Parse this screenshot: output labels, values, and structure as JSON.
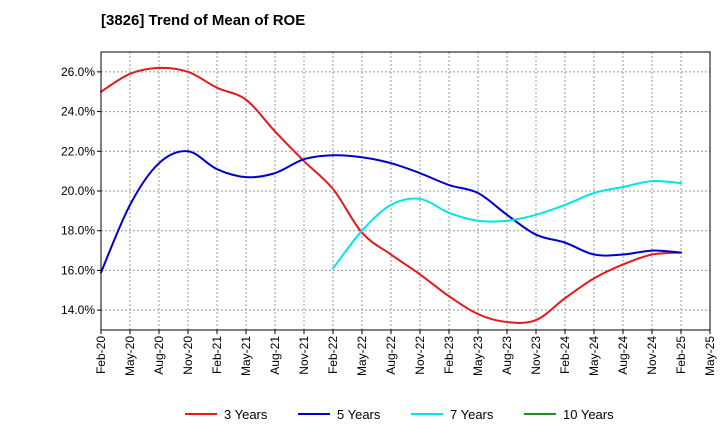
{
  "title": "[3826]  Trend of Mean of ROE",
  "chart_data": {
    "type": "line",
    "title": "[3826]  Trend of Mean of ROE",
    "xlabel": "",
    "ylabel": "",
    "x": [
      "Feb-20",
      "May-20",
      "Aug-20",
      "Nov-20",
      "Feb-21",
      "May-21",
      "Aug-21",
      "Nov-21",
      "Feb-22",
      "May-22",
      "Aug-22",
      "Nov-22",
      "Feb-23",
      "May-23",
      "Aug-23",
      "Nov-23",
      "Feb-24",
      "May-24",
      "Aug-24",
      "Nov-24",
      "Feb-25",
      "May-25"
    ],
    "ylim": [
      13.0,
      27.0
    ],
    "yticks": [
      14.0,
      16.0,
      18.0,
      20.0,
      22.0,
      24.0,
      26.0
    ],
    "ytick_labels": [
      "14.0%",
      "16.0%",
      "18.0%",
      "20.0%",
      "22.0%",
      "24.0%",
      "26.0%"
    ],
    "grid": true,
    "legend_position": "bottom",
    "series": [
      {
        "name": "3 Years",
        "color": "#e31a1c",
        "values": [
          25.0,
          25.9,
          26.2,
          26.0,
          25.2,
          24.6,
          23.0,
          21.5,
          20.1,
          17.9,
          16.8,
          15.8,
          14.7,
          13.8,
          13.4,
          13.5,
          14.6,
          15.6,
          16.3,
          16.8,
          16.9,
          null
        ]
      },
      {
        "name": "5 Years",
        "color": "#0000cc",
        "values": [
          15.9,
          19.3,
          21.4,
          22.0,
          21.1,
          20.7,
          20.9,
          21.6,
          21.8,
          21.7,
          21.4,
          20.9,
          20.3,
          19.9,
          18.8,
          17.8,
          17.4,
          16.8,
          16.8,
          17.0,
          16.9,
          null
        ]
      },
      {
        "name": "7 Years",
        "color": "#00e5e5",
        "values": [
          null,
          null,
          null,
          null,
          null,
          null,
          null,
          null,
          16.1,
          18.0,
          19.3,
          19.6,
          18.9,
          18.5,
          18.5,
          18.8,
          19.3,
          19.9,
          20.2,
          20.5,
          20.4,
          null
        ]
      },
      {
        "name": "10 Years",
        "color": "#228b22",
        "values": [
          null,
          null,
          null,
          null,
          null,
          null,
          null,
          null,
          null,
          null,
          null,
          null,
          null,
          null,
          null,
          null,
          null,
          null,
          null,
          null,
          null,
          null
        ]
      }
    ]
  }
}
